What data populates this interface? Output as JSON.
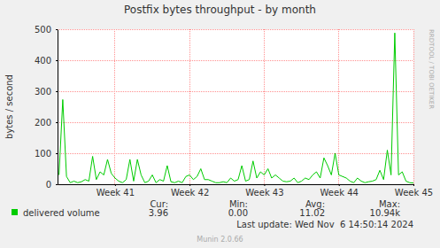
{
  "chart_data": {
    "type": "line",
    "title": "Postfix bytes throughput - by month",
    "y_label": "bytes / second",
    "watermark": "RRDTOOL / TOBI OETIKER",
    "last_update": "Last update: Wed Nov  6 14:50:14 2024",
    "footer": "Munin 2.0.66",
    "grid": true,
    "x": [
      40.25,
      40.3,
      40.35,
      40.4,
      40.45,
      40.5,
      40.55,
      40.6,
      40.65,
      40.7,
      40.75,
      40.8,
      40.85,
      40.9,
      40.95,
      41.0,
      41.05,
      41.1,
      41.15,
      41.2,
      41.25,
      41.3,
      41.35,
      41.4,
      41.45,
      41.5,
      41.55,
      41.6,
      41.65,
      41.7,
      41.75,
      41.8,
      41.85,
      41.9,
      41.95,
      42.0,
      42.05,
      42.1,
      42.15,
      42.2,
      42.25,
      42.3,
      42.35,
      42.4,
      42.45,
      42.5,
      42.55,
      42.6,
      42.65,
      42.7,
      42.75,
      42.8,
      42.85,
      42.9,
      42.95,
      43.0,
      43.05,
      43.1,
      43.15,
      43.2,
      43.25,
      43.3,
      43.35,
      43.4,
      43.45,
      43.5,
      43.55,
      43.6,
      43.65,
      43.7,
      43.75,
      43.8,
      43.85,
      43.9,
      43.95,
      44.0,
      44.05,
      44.1,
      44.15,
      44.2,
      44.25,
      44.3,
      44.35,
      44.4,
      44.45,
      44.5,
      44.55,
      44.6,
      44.65,
      44.7,
      44.75,
      44.8,
      44.85,
      44.9,
      44.95,
      45.0
    ],
    "xlim": [
      40.23,
      45.0
    ],
    "xticks": [
      {
        "value": 41,
        "label": "Week 41"
      },
      {
        "value": 42,
        "label": "Week 42"
      },
      {
        "value": 43,
        "label": "Week 43"
      },
      {
        "value": 44,
        "label": "Week 44"
      },
      {
        "value": 45,
        "label": "Week 45"
      }
    ],
    "ylim": [
      0,
      500
    ],
    "yticks": [
      0,
      100,
      200,
      300,
      400,
      500
    ],
    "series": [
      {
        "name": "delivered volume",
        "color": "#00cc00",
        "values": [
          30,
          273,
          25,
          5,
          10,
          5,
          8,
          15,
          10,
          90,
          15,
          40,
          30,
          80,
          35,
          20,
          10,
          5,
          15,
          80,
          10,
          80,
          30,
          5,
          10,
          30,
          5,
          15,
          10,
          60,
          8,
          5,
          10,
          5,
          25,
          30,
          15,
          25,
          50,
          15,
          15,
          10,
          5,
          5,
          8,
          5,
          20,
          10,
          15,
          60,
          10,
          15,
          75,
          20,
          40,
          30,
          50,
          20,
          30,
          20,
          10,
          8,
          10,
          20,
          5,
          10,
          20,
          15,
          30,
          40,
          20,
          85,
          60,
          30,
          100,
          30,
          25,
          20,
          10,
          5,
          20,
          10,
          5,
          8,
          10,
          15,
          45,
          15,
          110,
          30,
          488,
          30,
          40,
          10,
          5,
          3.96
        ],
        "stats": {
          "labels": [
            "Cur:",
            "Min:",
            "Avg:",
            "Max:"
          ],
          "values": [
            3.96,
            {
              "value": 0,
              "label": "0.00"
            },
            11.02,
            {
              "value": 10940,
              "label": "10.94k"
            }
          ]
        }
      }
    ]
  }
}
